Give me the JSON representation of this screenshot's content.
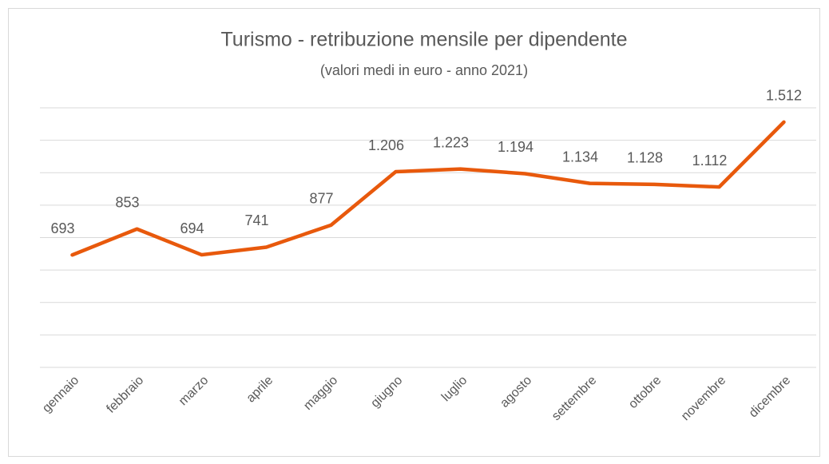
{
  "chart_data": {
    "type": "line",
    "title": "Turismo - retribuzione mensile per dipendente",
    "subtitle": "(valori medi in euro - anno 2021)",
    "categories": [
      "gennaio",
      "febbraio",
      "marzo",
      "aprile",
      "maggio",
      "giugno",
      "luglio",
      "agosto",
      "settembre",
      "ottobre",
      "novembre",
      "dicembre"
    ],
    "values": [
      693,
      853,
      694,
      741,
      877,
      1206,
      1223,
      1194,
      1134,
      1128,
      1112,
      1512
    ],
    "value_labels": [
      "693",
      "853",
      "694",
      "741",
      "877",
      "1.206",
      "1.223",
      "1.194",
      "1.134",
      "1.128",
      "1.112",
      "1.512"
    ],
    "color": "#e8590c",
    "ylim": [
      0,
      1600
    ],
    "yticks": [
      0,
      200,
      400,
      600,
      800,
      1000,
      1200,
      1400,
      1600
    ],
    "grid": true
  }
}
